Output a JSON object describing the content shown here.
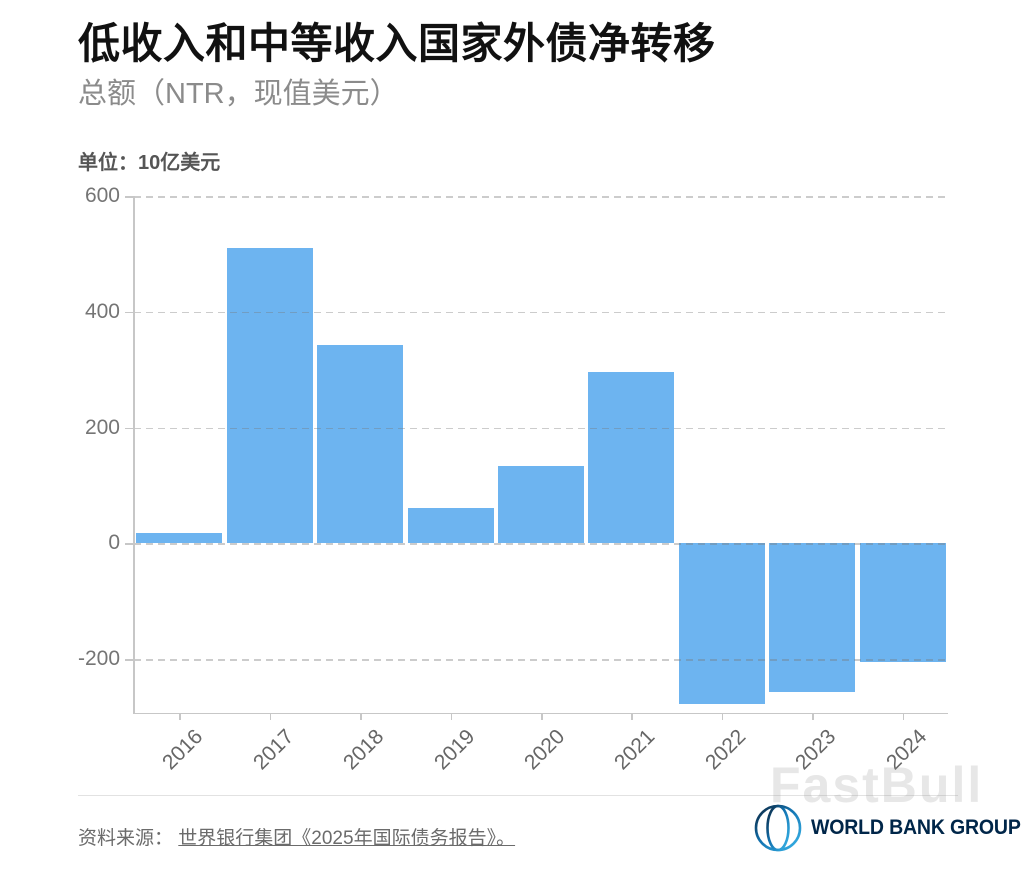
{
  "header": {
    "title": "低收入和中等收入国家外债净转移",
    "subtitle": "总额（NTR，现值美元）"
  },
  "chart": {
    "unit_label": "单位：10亿美元"
  },
  "chart_data": {
    "type": "bar",
    "title": "低收入和中等收入国家外债净转移",
    "subtitle": "总额（NTR，现值美元）",
    "unit_label": "单位：10亿美元",
    "categories": [
      "2016",
      "2017",
      "2018",
      "2019",
      "2020",
      "2021",
      "2022",
      "2023",
      "2024"
    ],
    "values": [
      18,
      510,
      343,
      61,
      133,
      296,
      -277,
      -256,
      -205
    ],
    "ylabel": "10亿美元",
    "yticks": [
      600,
      400,
      200,
      0,
      -200
    ],
    "ylim": [
      -293,
      600
    ],
    "bar_color": "#6db4f0",
    "grid": "horizontal-dashed",
    "legend": "none"
  },
  "footer": {
    "source_prefix": "资料来源：",
    "source_link": "世界银行集团《2025年国际债务报告》。",
    "logo_text": "WORLD BANK GROUP"
  },
  "watermark": "FastBull",
  "colors": {
    "bar": "#6db4f0",
    "title": "#111111",
    "subtitle": "#8b8b8b",
    "unit": "#555555",
    "axis": "#c7c7c7",
    "tick_label": "#757575",
    "x_label": "#666666",
    "footer_text": "#6b6b6b",
    "logo_navy": "#002649"
  }
}
